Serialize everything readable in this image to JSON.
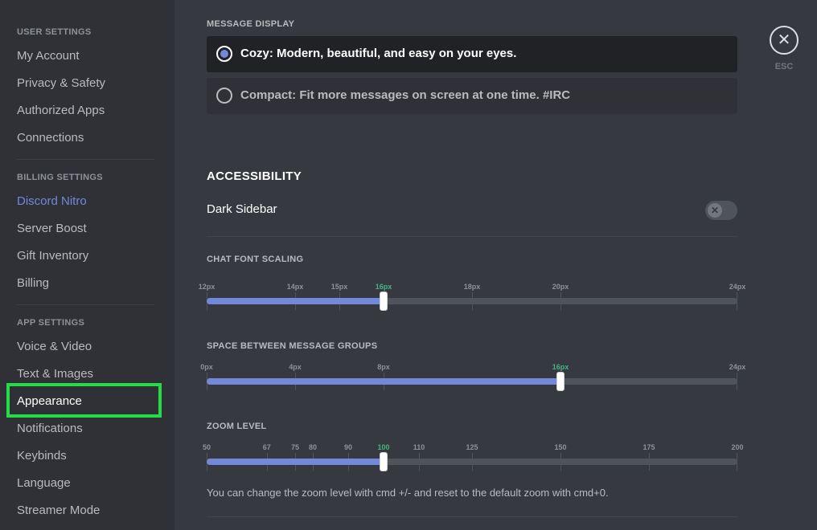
{
  "sidebar": {
    "sections": [
      {
        "header": "USER SETTINGS",
        "items": [
          "My Account",
          "Privacy & Safety",
          "Authorized Apps",
          "Connections"
        ]
      },
      {
        "header": "BILLING SETTINGS",
        "items": [
          "Discord Nitro",
          "Server Boost",
          "Gift Inventory",
          "Billing"
        ]
      },
      {
        "header": "APP SETTINGS",
        "items": [
          "Voice & Video",
          "Text & Images",
          "Appearance",
          "Notifications",
          "Keybinds",
          "Language",
          "Streamer Mode"
        ]
      }
    ],
    "selected_item": "Appearance",
    "nitro_color": "#7289da",
    "highlight_color": "#22dd44"
  },
  "message_display": {
    "label": "MESSAGE DISPLAY",
    "options": [
      {
        "text": "Cozy: Modern, beautiful, and easy on your eyes.",
        "selected": true
      },
      {
        "text": "Compact: Fit more messages on screen at one time. #IRC",
        "selected": false
      }
    ]
  },
  "accessibility": {
    "heading": "ACCESSIBILITY",
    "dark_sidebar_label": "Dark Sidebar",
    "dark_sidebar_on": false,
    "toggle_icon": "x-icon"
  },
  "sliders": {
    "chat_font": {
      "label": "CHAT FONT SCALING",
      "min": 12,
      "max": 24,
      "value": 16,
      "ticks": [
        {
          "v": 12,
          "label": "12px"
        },
        {
          "v": 14,
          "label": "14px"
        },
        {
          "v": 15,
          "label": "15px"
        },
        {
          "v": 16,
          "label": "16px"
        },
        {
          "v": 18,
          "label": "18px"
        },
        {
          "v": 20,
          "label": "20px"
        },
        {
          "v": 24,
          "label": "24px"
        }
      ]
    },
    "space_groups": {
      "label": "SPACE BETWEEN MESSAGE GROUPS",
      "min": 0,
      "max": 24,
      "value": 16,
      "ticks": [
        {
          "v": 0,
          "label": "0px"
        },
        {
          "v": 4,
          "label": "4px"
        },
        {
          "v": 8,
          "label": "8px"
        },
        {
          "v": 16,
          "label": "16px"
        },
        {
          "v": 24,
          "label": "24px"
        }
      ]
    },
    "zoom": {
      "label": "ZOOM LEVEL",
      "min": 50,
      "max": 200,
      "value": 100,
      "ticks": [
        {
          "v": 50,
          "label": "50"
        },
        {
          "v": 67,
          "label": "67"
        },
        {
          "v": 75,
          "label": "75"
        },
        {
          "v": 80,
          "label": "80"
        },
        {
          "v": 90,
          "label": "90"
        },
        {
          "v": 100,
          "label": "100"
        },
        {
          "v": 110,
          "label": "110"
        },
        {
          "v": 125,
          "label": "125"
        },
        {
          "v": 150,
          "label": "150"
        },
        {
          "v": 175,
          "label": "175"
        },
        {
          "v": 200,
          "label": "200"
        }
      ],
      "help": "You can change the zoom level with cmd +/- and reset to the default zoom with cmd+0."
    },
    "fill_color": "#7289da",
    "current_tick_color": "#43b581"
  },
  "close": {
    "icon": "close-icon",
    "label": "ESC"
  }
}
